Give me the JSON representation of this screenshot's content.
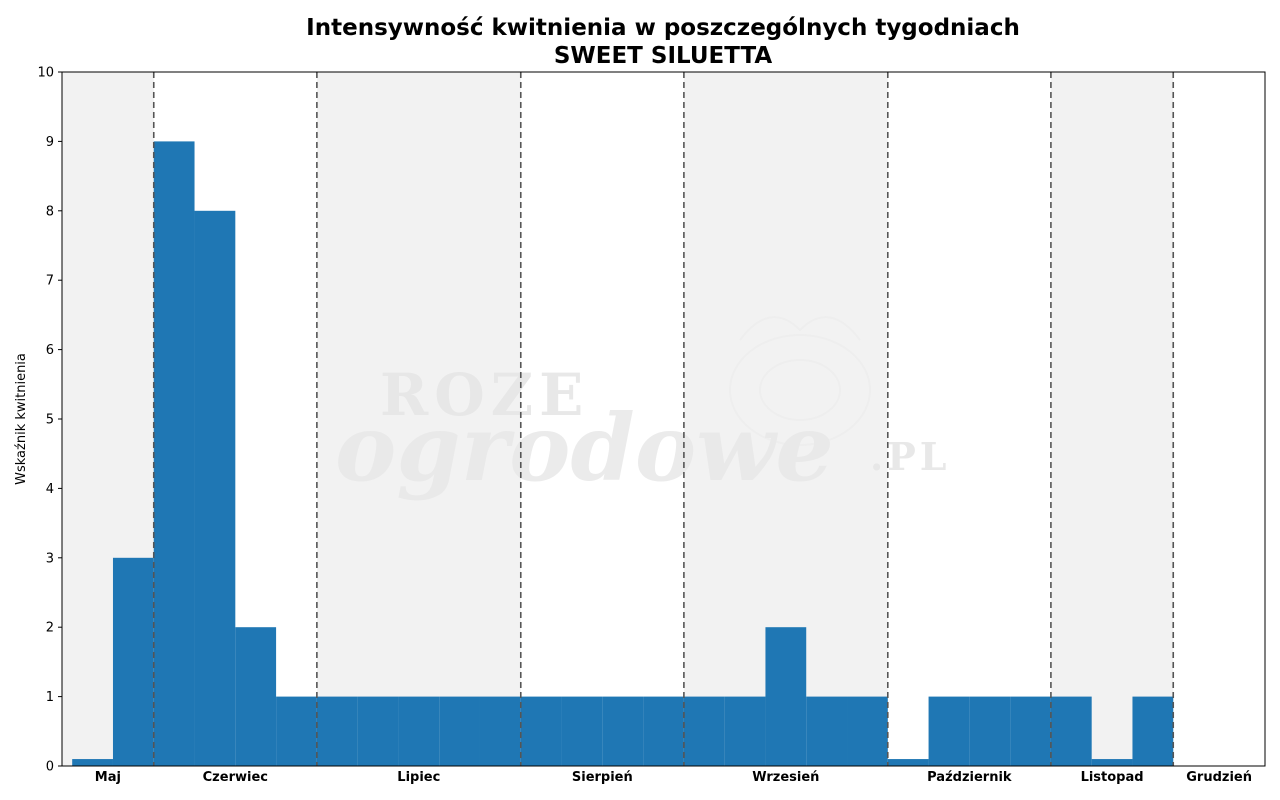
{
  "chart_data": {
    "type": "bar",
    "title": "Intensywność kwitnienia w poszczególnych tygodniach",
    "subtitle": "SWEET SILUETTA",
    "ylabel": "Wskaźnik kwitnienia",
    "xlabel": "",
    "ylim": [
      0,
      10
    ],
    "yticks": [
      0,
      1,
      2,
      3,
      4,
      5,
      6,
      7,
      8,
      9,
      10
    ],
    "grid": false,
    "colors": {
      "bar": "#1f77b4",
      "band": "#f2f2f2",
      "separator": "#555555"
    },
    "weeks_total": 29.5,
    "months": [
      {
        "label": "Maj",
        "start": 0,
        "end": 2.25,
        "shaded": true
      },
      {
        "label": "Czerwiec",
        "start": 2.25,
        "end": 6.25,
        "shaded": false
      },
      {
        "label": "Lipiec",
        "start": 6.25,
        "end": 11.25,
        "shaded": true
      },
      {
        "label": "Sierpień",
        "start": 11.25,
        "end": 15.25,
        "shaded": false
      },
      {
        "label": "Wrzesień",
        "start": 15.25,
        "end": 20.25,
        "shaded": true
      },
      {
        "label": "Październik",
        "start": 20.25,
        "end": 24.25,
        "shaded": false
      },
      {
        "label": "Listopad",
        "start": 24.25,
        "end": 27.25,
        "shaded": true
      },
      {
        "label": "Grudzień",
        "start": 27.25,
        "end": 29.5,
        "shaded": false
      }
    ],
    "weeks": [
      1,
      2,
      3,
      4,
      5,
      6,
      7,
      8,
      9,
      10,
      11,
      12,
      13,
      14,
      15,
      16,
      17,
      18,
      19,
      20,
      21,
      22,
      23,
      24,
      25,
      26,
      27,
      28
    ],
    "values": [
      0.1,
      3,
      9,
      8,
      2,
      1,
      1,
      1,
      1,
      1,
      1,
      1,
      1,
      1,
      1,
      1,
      1,
      2,
      1,
      1,
      0.1,
      1,
      1,
      1,
      1,
      0.1,
      1,
      0
    ],
    "watermark": [
      "ROZE",
      "ogrodowe",
      ".PL"
    ]
  }
}
